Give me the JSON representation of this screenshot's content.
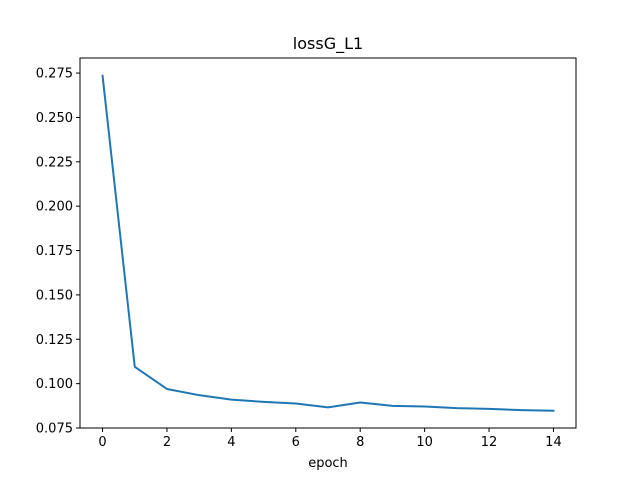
{
  "chart_data": {
    "type": "line",
    "title": "lossG_L1",
    "xlabel": "epoch",
    "ylabel": "",
    "xlim": [
      -0.7,
      14.7
    ],
    "ylim": [
      0.075,
      0.2835
    ],
    "xticks": [
      0,
      2,
      4,
      6,
      8,
      10,
      12,
      14
    ],
    "xtick_labels": [
      "0",
      "2",
      "4",
      "6",
      "8",
      "10",
      "12",
      "14"
    ],
    "yticks": [
      0.075,
      0.1,
      0.125,
      0.15,
      0.175,
      0.2,
      0.225,
      0.25,
      0.275
    ],
    "ytick_labels": [
      "0.075",
      "0.100",
      "0.125",
      "0.150",
      "0.175",
      "0.200",
      "0.225",
      "0.250",
      "0.275"
    ],
    "grid": false,
    "legend": "none",
    "series": [
      {
        "color": "#1f77b4",
        "x": [
          0,
          1,
          2,
          3,
          4,
          5,
          6,
          7,
          8,
          9,
          10,
          11,
          12,
          13,
          14
        ],
        "y": [
          0.2735,
          0.1095,
          0.097,
          0.0935,
          0.091,
          0.0897,
          0.0888,
          0.0866,
          0.0894,
          0.0875,
          0.0871,
          0.0862,
          0.0858,
          0.0851,
          0.0847
        ]
      }
    ]
  }
}
